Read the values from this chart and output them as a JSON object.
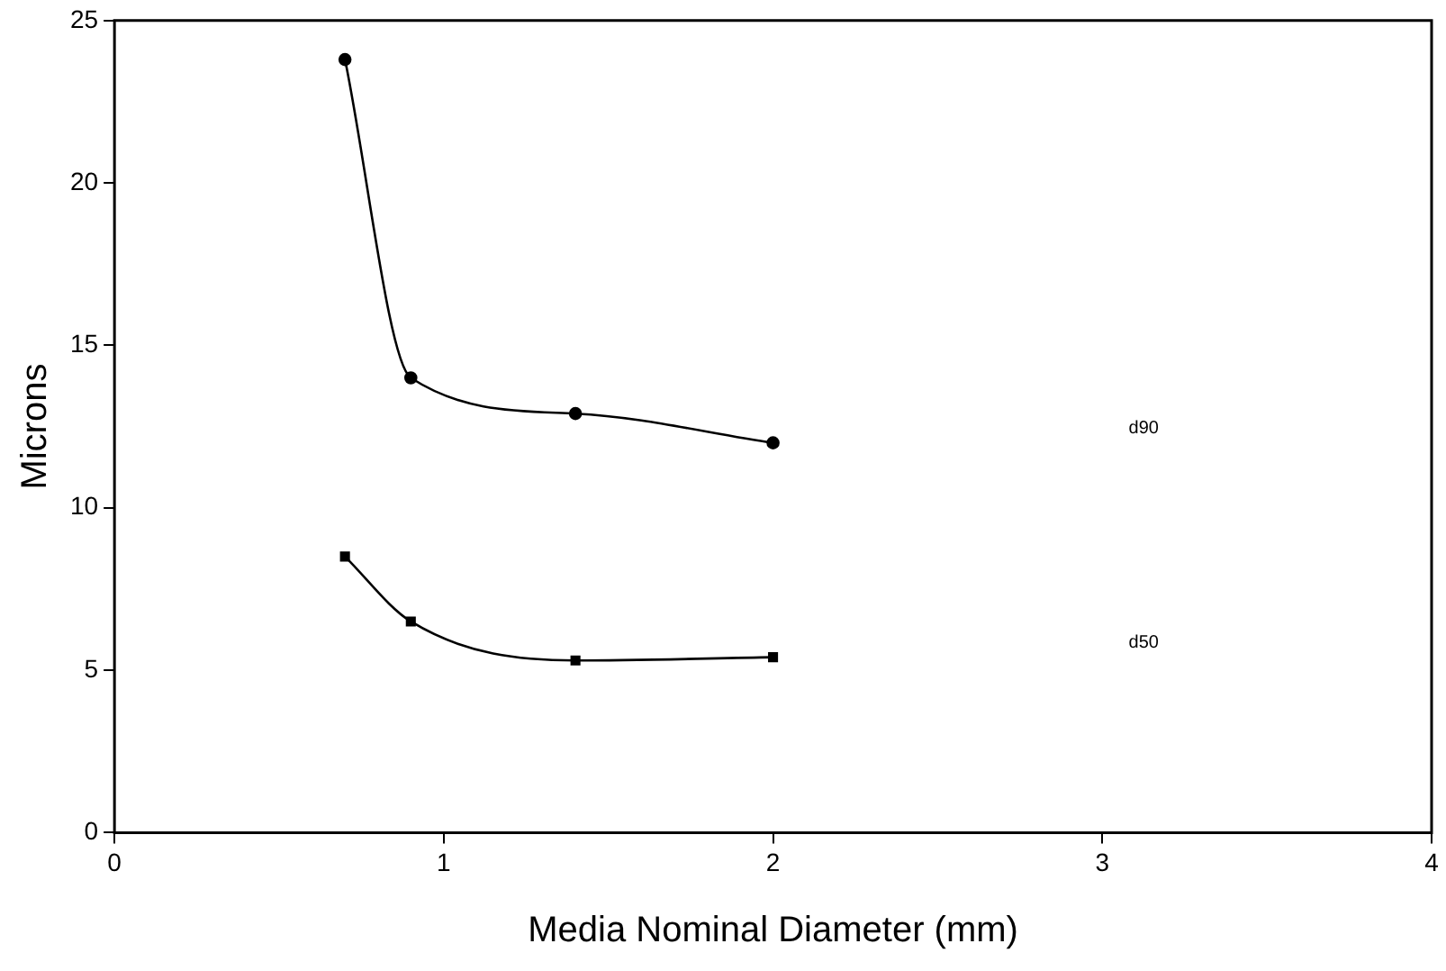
{
  "chart_data": {
    "type": "line",
    "xlabel": "Media Nominal Diameter (mm)",
    "ylabel": "Microns",
    "xlim": [
      0,
      4
    ],
    "xticks": [
      0,
      1,
      2,
      3,
      4
    ],
    "ylim": [
      0,
      25
    ],
    "yticks": [
      0,
      5,
      10,
      15,
      20,
      25
    ],
    "grid": false,
    "legend": false,
    "series": [
      {
        "name": "d90",
        "x": [
          0.7,
          0.9,
          1.4,
          2.0
        ],
        "values": [
          23.8,
          14.0,
          12.9,
          12.0
        ],
        "color": "#000000",
        "marker": "circle"
      },
      {
        "name": "d50",
        "x": [
          0.7,
          0.9,
          1.4,
          2.0
        ],
        "values": [
          8.5,
          6.5,
          5.3,
          5.4
        ],
        "color": "#000000",
        "marker": "square"
      }
    ]
  }
}
